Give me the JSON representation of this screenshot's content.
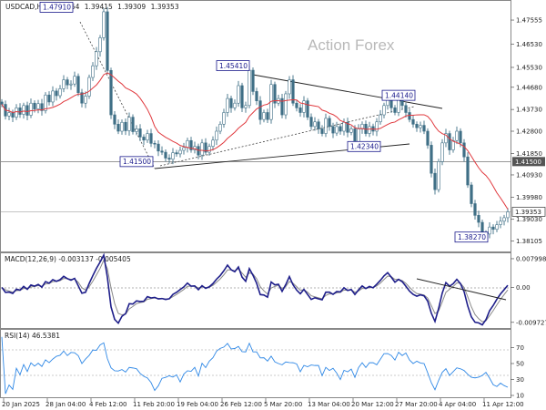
{
  "chart_data": [
    {
      "type": "candlestick",
      "title": "USDCAD,H4",
      "ohlc": {
        "open": "1.39354",
        "high": "1.39415",
        "low": "1.39309",
        "close": "1.39353"
      },
      "watermark": "Action Forex",
      "ylim": [
        1.3781,
        1.4818
      ],
      "y_ticks": [
        "1.47555",
        "1.46530",
        "1.45530",
        "1.44680",
        "1.43730",
        "1.42800",
        "1.41850",
        "1.40930",
        "1.39980",
        "1.39030",
        "1.38105"
      ],
      "x_ticks": [
        "20 Jan 2025",
        "28 Jan 04:00",
        "4 Feb 12:00",
        "11 Feb 20:00",
        "19 Feb 04:00",
        "26 Feb 12:00",
        "5 Mar 20:00",
        "13 Mar 04:00",
        "20 Mar 12:00",
        "27 Mar 20:00",
        "4 Apr 04:00",
        "11 Apr 12:00"
      ],
      "price_line": {
        "value": 1.415,
        "label": "1.41500",
        "color": "#555555"
      },
      "current": {
        "value": 1.39353,
        "label": "1.39353",
        "color": "#555555"
      },
      "annotations": [
        {
          "label": "1.47910",
          "value": 1.4791
        },
        {
          "label": "1.45410",
          "value": 1.4541
        },
        {
          "label": "1.44140",
          "value": 1.4414
        },
        {
          "label": "1.42340",
          "value": 1.4234
        },
        {
          "label": "1.41500",
          "value": 1.415
        },
        {
          "label": "1.38270",
          "value": 1.3827
        }
      ],
      "series": [
        {
          "x": [
            0,
            4,
            8,
            12,
            16,
            20,
            24,
            28,
            32,
            36,
            40,
            44,
            48,
            52,
            56,
            60,
            64,
            68,
            72,
            76,
            80,
            84,
            88,
            92,
            96,
            100,
            104,
            108,
            112,
            116,
            120,
            124,
            128,
            132,
            136,
            140,
            144,
            148,
            152,
            156,
            160,
            164,
            168,
            172,
            176,
            180,
            184,
            188,
            192,
            196,
            200,
            204,
            208,
            212,
            216,
            220,
            224,
            228,
            232,
            236,
            240,
            244,
            248,
            252,
            256,
            260,
            264,
            268,
            272,
            276,
            280,
            284,
            288,
            292,
            296,
            300,
            304,
            308,
            312,
            316,
            320,
            324,
            328,
            332,
            336,
            340,
            344,
            348,
            352,
            356,
            360,
            364,
            368,
            372,
            376,
            380,
            384,
            388,
            392,
            396,
            400,
            404,
            408,
            412,
            416,
            420,
            424,
            428,
            432,
            436,
            440,
            444,
            448,
            452,
            456,
            460,
            464,
            468,
            472,
            476,
            480,
            484,
            488,
            492,
            496,
            500,
            504,
            508,
            512,
            516,
            520,
            524,
            528,
            532,
            536,
            540,
            544,
            548,
            552,
            556
          ],
          "values": [
            1.4395,
            1.4345,
            1.436,
            1.434,
            1.438,
            1.4352,
            1.439,
            1.4348,
            1.44,
            1.4375,
            1.4398,
            1.4368,
            1.4435,
            1.4405,
            1.4452,
            1.4432,
            1.4462,
            1.45,
            1.4478,
            1.4482,
            1.4515,
            1.4445,
            1.44,
            1.443,
            1.451,
            1.456,
            1.462,
            1.468,
            1.4791,
            1.454,
            1.435,
            1.431,
            1.428,
            1.4318,
            1.4282,
            1.434,
            1.4278,
            1.429,
            1.4255,
            1.4242,
            1.427,
            1.4228,
            1.4225,
            1.4195,
            1.419,
            1.4165,
            1.416,
            1.4188,
            1.4183,
            1.4198,
            1.421,
            1.424,
            1.42,
            1.4215,
            1.4178,
            1.423,
            1.419,
            1.4215,
            1.4242,
            1.428,
            1.431,
            1.436,
            1.442,
            1.438,
            1.44,
            1.4475,
            1.438,
            1.439,
            1.4541,
            1.445,
            1.441,
            1.433,
            1.436,
            1.433,
            1.448,
            1.44,
            1.442,
            1.435,
            1.444,
            1.45,
            1.44,
            1.438,
            1.436,
            1.441,
            1.434,
            1.43,
            1.432,
            1.429,
            1.427,
            1.4335,
            1.43,
            1.4272,
            1.43,
            1.428,
            1.4318,
            1.4275,
            1.429,
            1.4234,
            1.429,
            1.431,
            1.427,
            1.43,
            1.428,
            1.432,
            1.435,
            1.439,
            1.442,
            1.438,
            1.436,
            1.4414,
            1.439,
            1.436,
            1.433,
            1.431,
            1.4295,
            1.4305,
            1.428,
            1.422,
            1.41,
            1.403,
            1.415,
            1.423,
            1.427,
            1.42,
            1.424,
            1.428,
            1.423,
            1.417,
            1.405,
            1.397,
            1.392,
            1.389,
            1.3827,
            1.384,
            1.387,
            1.386,
            1.388,
            1.3895,
            1.391,
            1.3935
          ]
        }
      ],
      "ma": {
        "color": "#e0393e"
      }
    },
    {
      "type": "line",
      "title": "MACD(12,26,9) -0.003137 -0.005405",
      "ylim": [
        -0.0108,
        0.009
      ],
      "y_ticks": [
        "0.007998",
        "0.00",
        "-0.009727"
      ],
      "series": [
        {
          "name": "MACD",
          "color": "#1e1e8a"
        },
        {
          "name": "Signal",
          "color": "#8a8a8a"
        }
      ]
    },
    {
      "type": "line",
      "title": "RSI(14) 46.5381",
      "ylim": [
        10,
        90
      ],
      "y_ticks": [
        "70",
        "50",
        "30",
        "10"
      ],
      "series": [
        {
          "name": "RSI",
          "color": "#2f88e6"
        }
      ]
    }
  ]
}
